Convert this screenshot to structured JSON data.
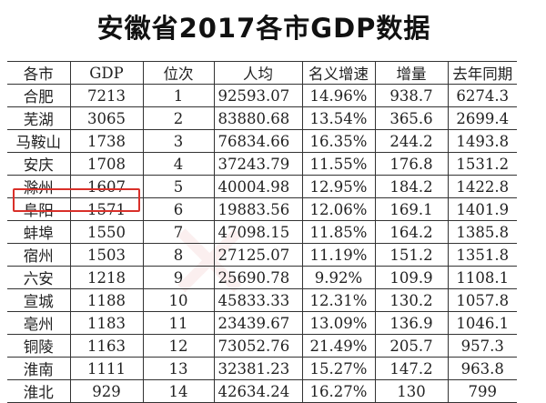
{
  "title": "安徽省2017各市GDP数据",
  "table": {
    "headers": [
      "各市",
      "GDP",
      "位次",
      "人均",
      "名义增速",
      "增量",
      "去年同期"
    ],
    "rows": [
      [
        "合肥",
        "7213",
        "1",
        "92593.07",
        "14.96%",
        "938.7",
        "6274.3"
      ],
      [
        "芜湖",
        "3065",
        "2",
        "83880.68",
        "13.54%",
        "365.6",
        "2699.4"
      ],
      [
        "马鞍山",
        "1738",
        "3",
        "76834.66",
        "16.35%",
        "244.2",
        "1493.8"
      ],
      [
        "安庆",
        "1708",
        "4",
        "37243.79",
        "11.55%",
        "176.8",
        "1531.2"
      ],
      [
        "滁州",
        "1607",
        "5",
        "40004.98",
        "12.95%",
        "184.2",
        "1422.8"
      ],
      [
        "阜阳",
        "1571",
        "6",
        "19883.56",
        "12.06%",
        "169.1",
        "1401.9"
      ],
      [
        "蚌埠",
        "1550",
        "7",
        "47098.15",
        "11.85%",
        "164.2",
        "1385.8"
      ],
      [
        "宿州",
        "1503",
        "8",
        "27125.07",
        "11.19%",
        "151.2",
        "1351.8"
      ],
      [
        "六安",
        "1218",
        "9",
        "25690.78",
        "9.92%",
        "109.9",
        "1108.1"
      ],
      [
        "宣城",
        "1188",
        "10",
        "45833.33",
        "12.31%",
        "130.2",
        "1057.8"
      ],
      [
        "亳州",
        "1183",
        "11",
        "23439.67",
        "13.09%",
        "136.9",
        "1046.1"
      ],
      [
        "铜陵",
        "1163",
        "12",
        "73052.76",
        "21.49%",
        "205.7",
        "957.3"
      ],
      [
        "淮南",
        "1111",
        "13",
        "32381.23",
        "15.27%",
        "147.2",
        "963.8"
      ],
      [
        "淮北",
        "929",
        "14",
        "42634.24",
        "16.27%",
        "130",
        "799"
      ]
    ],
    "highlighted_row": "阜阳",
    "highlight_color": "#d9302a"
  }
}
